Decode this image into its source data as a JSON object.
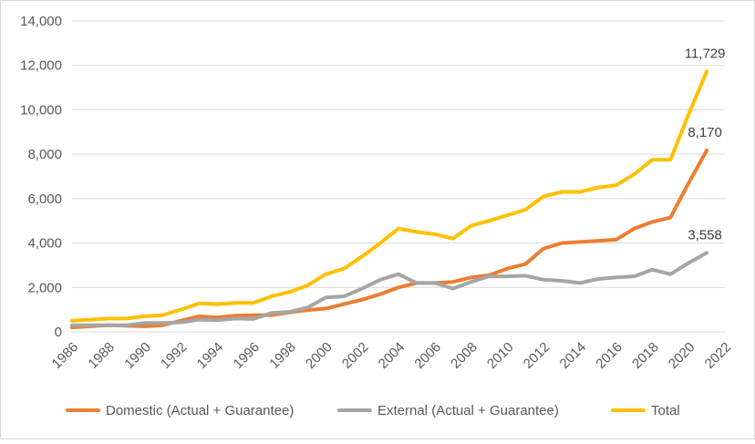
{
  "chart_data": {
    "type": "line",
    "ylim": [
      0,
      14000
    ],
    "yticks": [
      "0",
      "2,000",
      "4,000",
      "6,000",
      "8,000",
      "10,000",
      "12,000",
      "14,000"
    ],
    "xlim": [
      1986,
      2022
    ],
    "xticks": [
      "1986",
      "1988",
      "1990",
      "1992",
      "1994",
      "1996",
      "1998",
      "2000",
      "2002",
      "2004",
      "2006",
      "2008",
      "2010",
      "2012",
      "2014",
      "2016",
      "2018",
      "2020",
      "2022"
    ],
    "grid": true,
    "legend_position": "bottom",
    "x": [
      1986,
      1987,
      1988,
      1989,
      1990,
      1991,
      1992,
      1993,
      1994,
      1995,
      1996,
      1997,
      1998,
      1999,
      2000,
      2001,
      2002,
      2003,
      2004,
      2005,
      2006,
      2007,
      2008,
      2009,
      2010,
      2011,
      2012,
      2013,
      2014,
      2015,
      2016,
      2017,
      2018,
      2019,
      2020,
      2021
    ],
    "series": [
      {
        "name": "Domestic (Actual + Guarantee)",
        "color": "#ED7D31",
        "values": [
          200,
          250,
          300,
          280,
          250,
          300,
          500,
          700,
          650,
          730,
          750,
          750,
          880,
          980,
          1050,
          1250,
          1450,
          1700,
          2000,
          2200,
          2200,
          2250,
          2450,
          2550,
          2850,
          3050,
          3750,
          4000,
          4050,
          4100,
          4150,
          4650,
          4950,
          5150,
          6700,
          8170
        ],
        "end_label": "8,170"
      },
      {
        "name": "External (Actual + Guarantee)",
        "color": "#A5A5A5",
        "values": [
          300,
          300,
          300,
          300,
          400,
          400,
          430,
          550,
          520,
          600,
          580,
          850,
          900,
          1100,
          1550,
          1600,
          1950,
          2350,
          2600,
          2200,
          2200,
          1950,
          2250,
          2500,
          2500,
          2530,
          2350,
          2300,
          2200,
          2380,
          2450,
          2500,
          2800,
          2600,
          3100,
          3558
        ],
        "end_label": "3,558"
      },
      {
        "name": "Total",
        "color": "#FFC000",
        "values": [
          500,
          550,
          600,
          600,
          700,
          750,
          1000,
          1280,
          1250,
          1300,
          1300,
          1600,
          1800,
          2100,
          2600,
          2850,
          3400,
          4000,
          4650,
          4500,
          4400,
          4200,
          4780,
          5000,
          5250,
          5500,
          6100,
          6300,
          6300,
          6500,
          6600,
          7100,
          7750,
          7750,
          9800,
          11729
        ],
        "end_label": "11,729"
      }
    ]
  }
}
